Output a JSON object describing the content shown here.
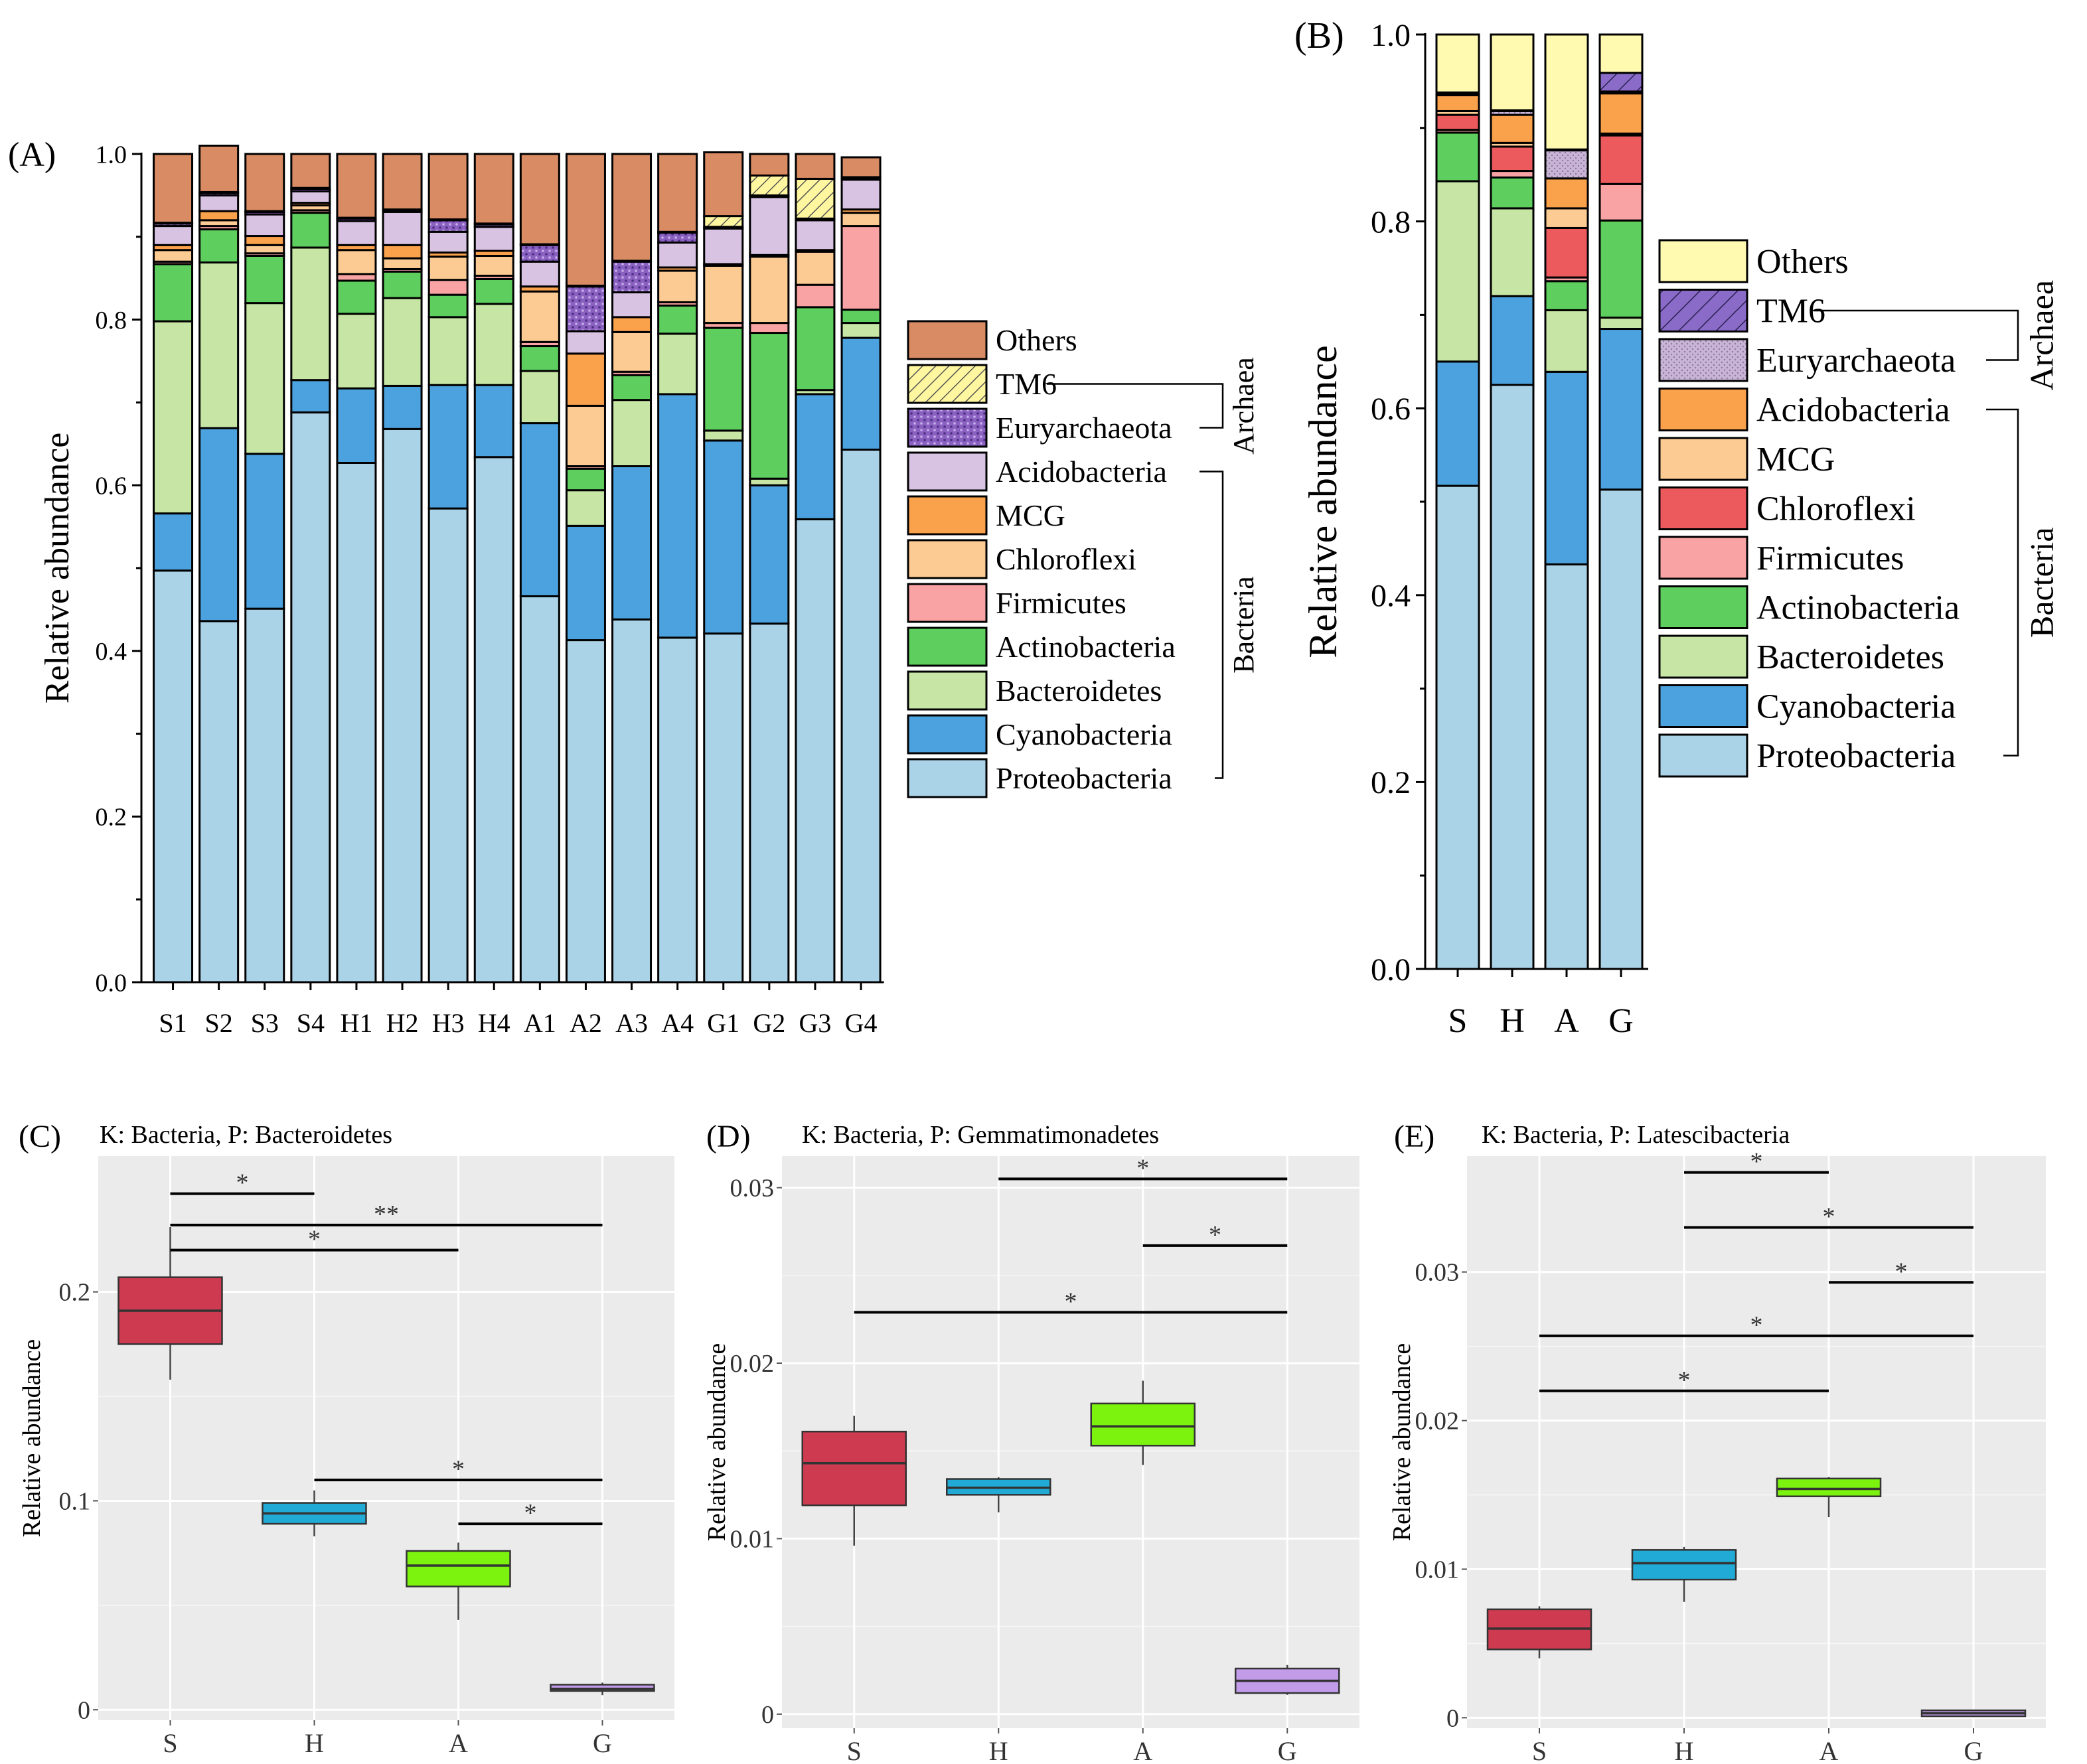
{
  "figure": {
    "colors": {
      "Others_A": "#D98B63",
      "Others_B": "#FFFAB0",
      "TM6": "#FFF6A0",
      "TM6_B": "#8A6CC8",
      "Euryarchaeota_A": "#8A60C0",
      "Euryarchaeota_B": "#C8B4D4",
      "Acidobacteria_A": "#D9C3E3",
      "Acidobacteria_B": "#FAA14C",
      "MCG_A": "#FAA14C",
      "MCG_B": "#FCCB93",
      "Chloroflexi_A": "#FCCB93",
      "Chloroflexi_B": "#EC5A5E",
      "Firmicutes": "#F9A3A4",
      "Actinobacteria": "#5ECF5F",
      "Bacteroidetes": "#C7E6A5",
      "Cyanobacteria": "#4CA2DE",
      "Proteobacteria": "#ABD3E7",
      "box_S": "#CE3A50",
      "box_H": "#22AAD7",
      "box_A": "#7CF30E",
      "box_G": "#C29BE9",
      "panel_bg": "#EBEBEB"
    }
  },
  "chart_data": [
    {
      "panel": "(A)",
      "type": "bar",
      "stacked": true,
      "ylabel": "Relative abundance",
      "ylim": [
        0,
        1.0
      ],
      "yticks": [
        "0.0",
        "0.2",
        "0.4",
        "0.6",
        "0.8",
        "1.0"
      ],
      "categories": [
        "S1",
        "S2",
        "S3",
        "S4",
        "H1",
        "H2",
        "H3",
        "H4",
        "A1",
        "A2",
        "A3",
        "A4",
        "G1",
        "G2",
        "G3",
        "G4"
      ],
      "series": [
        {
          "name": "Proteobacteria",
          "color_key": "Proteobacteria",
          "values": [
            0.497,
            0.436,
            0.451,
            0.688,
            0.627,
            0.668,
            0.572,
            0.634,
            0.466,
            0.413,
            0.438,
            0.416,
            0.421,
            0.433,
            0.559,
            0.643
          ]
        },
        {
          "name": "Cyanobacteria",
          "color_key": "Cyanobacteria",
          "values": [
            0.069,
            0.233,
            0.187,
            0.039,
            0.09,
            0.052,
            0.149,
            0.087,
            0.209,
            0.138,
            0.185,
            0.294,
            0.233,
            0.167,
            0.151,
            0.135
          ]
        },
        {
          "name": "Bacteroidetes",
          "color_key": "Bacteroidetes",
          "values": [
            0.232,
            0.2,
            0.182,
            0.16,
            0.09,
            0.106,
            0.082,
            0.098,
            0.063,
            0.043,
            0.08,
            0.073,
            0.012,
            0.008,
            0.005,
            0.018
          ]
        },
        {
          "name": "Actinobacteria",
          "color_key": "Actinobacteria",
          "values": [
            0.069,
            0.04,
            0.057,
            0.042,
            0.04,
            0.032,
            0.027,
            0.03,
            0.03,
            0.026,
            0.03,
            0.034,
            0.124,
            0.176,
            0.1,
            0.016
          ]
        },
        {
          "name": "Firmicutes",
          "color_key": "Firmicutes",
          "values": [
            0.003,
            0.004,
            0.003,
            0.003,
            0.008,
            0.003,
            0.018,
            0.004,
            0.005,
            0.003,
            0.004,
            0.004,
            0.006,
            0.012,
            0.027,
            0.101
          ]
        },
        {
          "name": "Chloroflexi",
          "color_key": "Chloroflexi_A",
          "values": [
            0.014,
            0.007,
            0.01,
            0.006,
            0.029,
            0.013,
            0.028,
            0.024,
            0.061,
            0.073,
            0.048,
            0.038,
            0.069,
            0.08,
            0.04,
            0.016
          ]
        },
        {
          "name": "MCG",
          "color_key": "MCG_A",
          "values": [
            0.006,
            0.011,
            0.011,
            0.003,
            0.006,
            0.016,
            0.005,
            0.006,
            0.006,
            0.063,
            0.018,
            0.004,
            0.002,
            0.002,
            0.002,
            0.004
          ]
        },
        {
          "name": "Acidobacteria",
          "color_key": "Acidobacteria_A",
          "values": [
            0.023,
            0.019,
            0.026,
            0.014,
            0.029,
            0.04,
            0.025,
            0.029,
            0.03,
            0.027,
            0.03,
            0.03,
            0.043,
            0.07,
            0.036,
            0.036
          ]
        },
        {
          "name": "Euryarchaeota",
          "color_key": "Euryarchaeota_A",
          "values": [
            0.003,
            0.003,
            0.003,
            0.003,
            0.003,
            0.002,
            0.014,
            0.003,
            0.02,
            0.054,
            0.037,
            0.012,
            0.002,
            0.002,
            0.002,
            0.002
          ]
        },
        {
          "name": "TM6",
          "color_key": "TM6",
          "values": [
            0.001,
            0.001,
            0.001,
            0.001,
            0.001,
            0.001,
            0.001,
            0.001,
            0.001,
            0.001,
            0.001,
            0.001,
            0.013,
            0.024,
            0.048,
            0.001
          ]
        },
        {
          "name": "Others",
          "color_key": "Others_A",
          "values": [
            0.083,
            0.056,
            0.069,
            0.041,
            0.077,
            0.067,
            0.079,
            0.084,
            0.109,
            0.159,
            0.129,
            0.094,
            0.077,
            0.026,
            0.03,
            0.024
          ]
        }
      ],
      "legend": [
        "Others",
        "TM6",
        "Euryarchaeota",
        "Acidobacteria",
        "MCG",
        "Chloroflexi",
        "Firmicutes",
        "Actinobacteria",
        "Bacteroidetes",
        "Cyanobacteria",
        "Proteobacteria"
      ],
      "legend_colors": [
        "Others_A",
        "TM6",
        "Euryarchaeota_A",
        "Acidobacteria_A",
        "MCG_A",
        "Chloroflexi_A",
        "Firmicutes",
        "Actinobacteria",
        "Bacteroidetes",
        "Cyanobacteria",
        "Proteobacteria"
      ],
      "legend_patterns": {
        "TM6": "hatch",
        "Euryarchaeota": "dots"
      },
      "groups": [
        {
          "label": "Archaea",
          "from": "TM6",
          "to": "Euryarchaeota"
        },
        {
          "label": "Bacteria",
          "from": "Acidobacteria",
          "to": "Proteobacteria"
        }
      ]
    },
    {
      "panel": "(B)",
      "type": "bar",
      "stacked": true,
      "ylabel": "Relative abundance",
      "ylim": [
        0,
        1.0
      ],
      "yticks": [
        "0.0",
        "0.2",
        "0.4",
        "0.6",
        "0.8",
        "1.0"
      ],
      "categories": [
        "S",
        "H",
        "A",
        "G"
      ],
      "series": [
        {
          "name": "Proteobacteria",
          "color_key": "Proteobacteria",
          "values": [
            0.517,
            0.625,
            0.433,
            0.513
          ]
        },
        {
          "name": "Cyanobacteria",
          "color_key": "Cyanobacteria",
          "values": [
            0.133,
            0.095,
            0.206,
            0.172
          ]
        },
        {
          "name": "Bacteroidetes",
          "color_key": "Bacteroidetes",
          "values": [
            0.193,
            0.094,
            0.066,
            0.012
          ]
        },
        {
          "name": "Actinobacteria",
          "color_key": "Actinobacteria",
          "values": [
            0.052,
            0.033,
            0.031,
            0.104
          ]
        },
        {
          "name": "Firmicutes",
          "color_key": "Firmicutes",
          "values": [
            0.003,
            0.007,
            0.004,
            0.039
          ]
        },
        {
          "name": "Chloroflexi",
          "color_key": "Chloroflexi_B",
          "values": [
            0.016,
            0.026,
            0.053,
            0.052
          ]
        },
        {
          "name": "MCG",
          "color_key": "MCG_B",
          "values": [
            0.004,
            0.004,
            0.021,
            0.002
          ]
        },
        {
          "name": "Acidobacteria",
          "color_key": "Acidobacteria_B",
          "values": [
            0.017,
            0.03,
            0.032,
            0.043
          ]
        },
        {
          "name": "Euryarchaeota",
          "color_key": "Euryarchaeota_B",
          "values": [
            0.002,
            0.004,
            0.03,
            0.002
          ]
        },
        {
          "name": "TM6",
          "color_key": "TM6_B",
          "values": [
            0.001,
            0.001,
            0.001,
            0.02
          ]
        },
        {
          "name": "Others",
          "color_key": "Others_B",
          "values": [
            0.062,
            0.081,
            0.123,
            0.041
          ]
        }
      ],
      "legend": [
        "Others",
        "TM6",
        "Euryarchaeota",
        "Acidobacteria",
        "MCG",
        "Chloroflexi",
        "Firmicutes",
        "Actinobacteria",
        "Bacteroidetes",
        "Cyanobacteria",
        "Proteobacteria"
      ],
      "legend_colors": [
        "Others_B",
        "TM6_B",
        "Euryarchaeota_B",
        "Acidobacteria_B",
        "MCG_B",
        "Chloroflexi_B",
        "Firmicutes",
        "Actinobacteria",
        "Bacteroidetes",
        "Cyanobacteria",
        "Proteobacteria"
      ],
      "legend_patterns": {
        "TM6": "hatch-dark",
        "Euryarchaeota": "dots-light"
      },
      "groups": [
        {
          "label": "Archaea",
          "from": "TM6",
          "to": "Euryarchaeota"
        },
        {
          "label": "Bacteria",
          "from": "Acidobacteria",
          "to": "Proteobacteria"
        }
      ]
    },
    {
      "panel": "(C)",
      "type": "box",
      "title": "K: Bacteria, P: Bacteroidetes",
      "ylabel": "Relative abundance",
      "ylim": [
        -0.005,
        0.265
      ],
      "yticks": [
        {
          "v": 0,
          "t": "0"
        },
        {
          "v": 0.1,
          "t": "0.1"
        },
        {
          "v": 0.2,
          "t": "0.2"
        }
      ],
      "categories": [
        "S",
        "H",
        "A",
        "G"
      ],
      "boxes": [
        {
          "cat": "S",
          "min": 0.158,
          "q1": 0.175,
          "median": 0.191,
          "q3": 0.207,
          "max": 0.231,
          "color_key": "box_S"
        },
        {
          "cat": "H",
          "min": 0.083,
          "q1": 0.089,
          "median": 0.094,
          "q3": 0.099,
          "max": 0.105,
          "color_key": "box_H"
        },
        {
          "cat": "A",
          "min": 0.043,
          "q1": 0.059,
          "median": 0.069,
          "q3": 0.076,
          "max": 0.08,
          "color_key": "box_A"
        },
        {
          "cat": "G",
          "min": 0.007,
          "q1": 0.009,
          "median": 0.01,
          "q3": 0.012,
          "max": 0.013,
          "color_key": "box_G"
        }
      ],
      "significance": [
        {
          "from": "S",
          "to": "H",
          "y": 0.247,
          "label": "*"
        },
        {
          "from": "S",
          "to": "G",
          "y": 0.232,
          "label": "**"
        },
        {
          "from": "S",
          "to": "A",
          "y": 0.22,
          "label": "*"
        },
        {
          "from": "H",
          "to": "G",
          "y": 0.11,
          "label": "*"
        },
        {
          "from": "A",
          "to": "G",
          "y": 0.089,
          "label": "*"
        }
      ]
    },
    {
      "panel": "(D)",
      "type": "box",
      "title": "K: Bacteria, P: Gemmatimonadetes",
      "ylabel": "Relative abundance",
      "ylim": [
        -0.0008,
        0.0318
      ],
      "yticks": [
        {
          "v": 0,
          "t": "0"
        },
        {
          "v": 0.01,
          "t": "0.01"
        },
        {
          "v": 0.02,
          "t": "0.02"
        },
        {
          "v": 0.03,
          "t": "0.03"
        }
      ],
      "categories": [
        "S",
        "H",
        "A",
        "G"
      ],
      "boxes": [
        {
          "cat": "S",
          "min": 0.0096,
          "q1": 0.0119,
          "median": 0.0143,
          "q3": 0.0161,
          "max": 0.017,
          "color_key": "box_S"
        },
        {
          "cat": "H",
          "min": 0.0115,
          "q1": 0.0125,
          "median": 0.0129,
          "q3": 0.0134,
          "max": 0.0135,
          "color_key": "box_H"
        },
        {
          "cat": "A",
          "min": 0.0142,
          "q1": 0.0153,
          "median": 0.0164,
          "q3": 0.0177,
          "max": 0.019,
          "color_key": "box_A"
        },
        {
          "cat": "G",
          "min": 0.0011,
          "q1": 0.0012,
          "median": 0.0019,
          "q3": 0.0026,
          "max": 0.0028,
          "color_key": "box_G"
        }
      ],
      "significance": [
        {
          "from": "H",
          "to": "G",
          "y": 0.0305,
          "label": "*"
        },
        {
          "from": "A",
          "to": "G",
          "y": 0.0267,
          "label": "*"
        },
        {
          "from": "S",
          "to": "G",
          "y": 0.0229,
          "label": "*"
        }
      ]
    },
    {
      "panel": "(E)",
      "type": "box",
      "title": "K: Bacteria, P: Latescibacteria",
      "ylabel": "Relative abundance",
      "ylim": [
        -0.0007,
        0.0378
      ],
      "yticks": [
        {
          "v": 0,
          "t": "0"
        },
        {
          "v": 0.01,
          "t": "0.01"
        },
        {
          "v": 0.02,
          "t": "0.02"
        },
        {
          "v": 0.03,
          "t": "0.03"
        }
      ],
      "categories": [
        "S",
        "H",
        "A",
        "G"
      ],
      "boxes": [
        {
          "cat": "S",
          "min": 0.004,
          "q1": 0.0046,
          "median": 0.006,
          "q3": 0.0073,
          "max": 0.0075,
          "color_key": "box_S"
        },
        {
          "cat": "H",
          "min": 0.0078,
          "q1": 0.0093,
          "median": 0.0104,
          "q3": 0.0113,
          "max": 0.0115,
          "color_key": "box_H"
        },
        {
          "cat": "A",
          "min": 0.0135,
          "q1": 0.0149,
          "median": 0.0154,
          "q3": 0.0161,
          "max": 0.0162,
          "color_key": "box_A"
        },
        {
          "cat": "G",
          "min": 0.0001,
          "q1": 0.0001,
          "median": 0.0003,
          "q3": 0.0005,
          "max": 0.0005,
          "color_key": "box_G"
        }
      ],
      "significance": [
        {
          "from": "H",
          "to": "A",
          "y": 0.0367,
          "label": "*"
        },
        {
          "from": "H",
          "to": "G",
          "y": 0.033,
          "label": "*"
        },
        {
          "from": "A",
          "to": "G",
          "y": 0.0293,
          "label": "*"
        },
        {
          "from": "S",
          "to": "G",
          "y": 0.0257,
          "label": "*"
        },
        {
          "from": "S",
          "to": "A",
          "y": 0.022,
          "label": "*"
        }
      ]
    }
  ]
}
